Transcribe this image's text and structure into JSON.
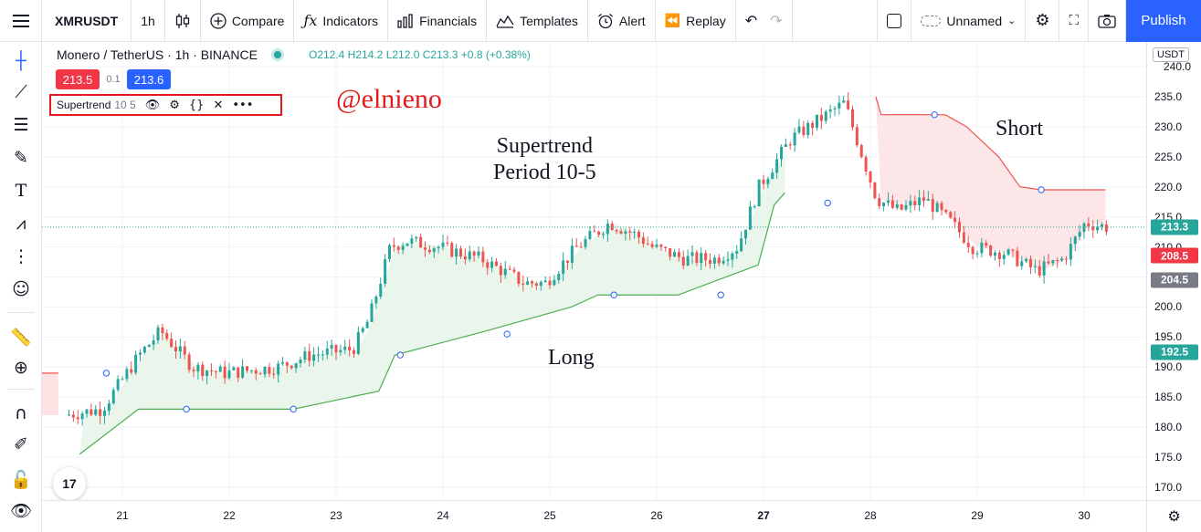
{
  "topbar": {
    "symbol": "XMRUSDT",
    "interval": "1h",
    "compare_label": "Compare",
    "indicators_label": "Indicators",
    "financials_label": "Financials",
    "templates_label": "Templates",
    "alert_label": "Alert",
    "replay_label": "Replay",
    "layout_name": "Unnamed",
    "publish_label": "Publish"
  },
  "legend": {
    "title": "Monero / TetherUS · 1h · BINANCE",
    "open": "O212.4",
    "high": "H214.2",
    "low": "L212.0",
    "close": "C213.3",
    "change": "+0.8 (+0.38%)",
    "sell_price": "213.5",
    "spread": "0.1",
    "buy_price": "213.6"
  },
  "indicator": {
    "name": "Supertrend",
    "params": "10 5"
  },
  "annotations": {
    "watermark": "@elnieno",
    "supertrend_line1": "Supertrend",
    "supertrend_line2": "Period 10-5",
    "long": "Long",
    "short": "Short"
  },
  "price_axis": {
    "currency": "USDT",
    "ticks": [
      "240.0",
      "235.0",
      "230.0",
      "225.0",
      "220.0",
      "215.0",
      "210.0",
      "205.0",
      "200.0",
      "195.0",
      "190.0",
      "185.0",
      "180.0",
      "175.0",
      "170.0"
    ],
    "badges": [
      {
        "label": "213.3",
        "value": 213.3,
        "color": "#26a69a"
      },
      {
        "label": "208.5",
        "value": 208.5,
        "color": "#f23645"
      },
      {
        "label": "204.5",
        "value": 204.5,
        "color": "#787b86"
      },
      {
        "label": "192.5",
        "value": 192.5,
        "color": "#26a69a"
      }
    ]
  },
  "time_axis": {
    "ticks": [
      "21",
      "22",
      "23",
      "24",
      "25",
      "26",
      "27",
      "28",
      "29",
      "30"
    ],
    "bold_tick": "27"
  },
  "chart_data": {
    "type": "candlestick",
    "y_range": [
      169,
      241
    ],
    "current_price": 213.3,
    "colors": {
      "up": "#26a69a",
      "down": "#ef5350",
      "long_fill": "#e8f5e9",
      "short_fill": "#fde3e4"
    },
    "supertrend_long": [
      [
        0.6,
        175.5
      ],
      [
        1.15,
        183
      ],
      [
        2.6,
        183
      ],
      [
        3.4,
        186
      ],
      [
        3.55,
        192
      ],
      [
        4.4,
        196
      ],
      [
        5.2,
        200
      ],
      [
        5.45,
        202
      ],
      [
        6.2,
        202
      ],
      [
        6.95,
        207
      ],
      [
        7.1,
        217
      ],
      [
        7.2,
        219
      ]
    ],
    "supertrend_short_pre": [
      [
        0,
        189
      ],
      [
        0.4,
        189
      ]
    ],
    "supertrend_short": [
      [
        8.05,
        235
      ],
      [
        8.1,
        232
      ],
      [
        8.7,
        232
      ],
      [
        8.9,
        230
      ],
      [
        9.2,
        225
      ],
      [
        9.4,
        220
      ],
      [
        9.6,
        219.5
      ],
      [
        10.2,
        219.5
      ]
    ],
    "candles_summary": "Hourly XMRUSDT candles from day 20.5 to 30.2, rising from ~182 to peak ~236 on day 27.8 then falling to ~204 and recovering to 213.3"
  }
}
